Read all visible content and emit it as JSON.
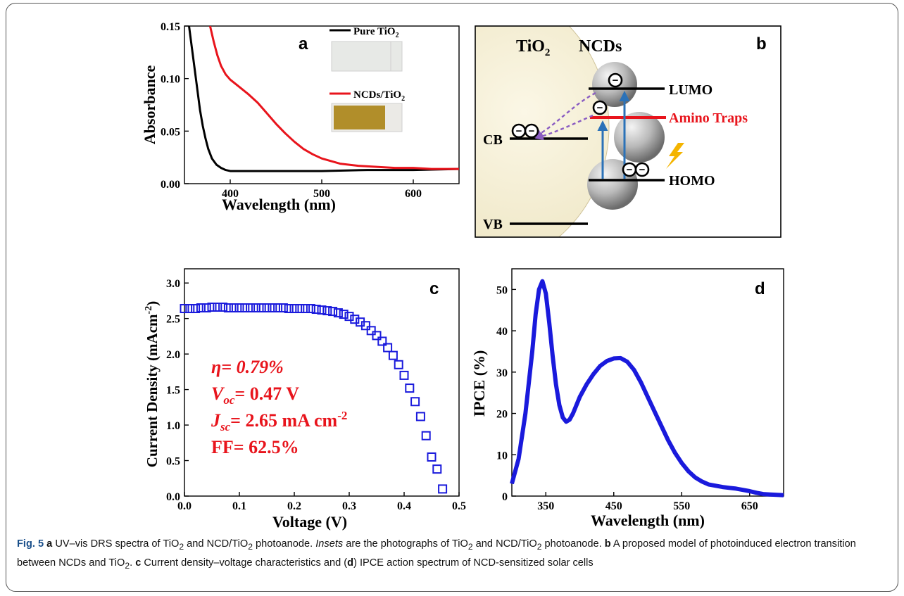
{
  "panels": {
    "a": {
      "letter": "a",
      "legend": [
        {
          "name": "Pure TiO",
          "sub": "2",
          "color": "#000000"
        },
        {
          "name": "NCDs/TiO",
          "sub": "2",
          "color": "#e8141c"
        }
      ]
    },
    "b": {
      "letter": "b",
      "tio2": "TiO",
      "tio2_sub": "2",
      "ncds": "NCDs",
      "lumo": "LUMO",
      "homo": "HOMO",
      "cb": "CB",
      "vb": "VB",
      "traps": "Amino Traps",
      "electron": "−"
    },
    "c": {
      "letter": "c",
      "eta": "η= 0.79%",
      "voc_sym": "V",
      "voc_sub": "oc",
      "voc_val": "= 0.47 V",
      "jsc_sym": "J",
      "jsc_sub": "sc",
      "jsc_val": "= 2.65 mA cm",
      "jsc_sup": "-2",
      "ff": "FF= 62.5%",
      "text_color": "#e8141c"
    },
    "d": {
      "letter": "d"
    }
  },
  "chart_data": [
    {
      "type": "line",
      "panel": "a",
      "xlabel": "Wavelength (nm)",
      "ylabel": "Absorbance",
      "xlim": [
        350,
        650
      ],
      "ylim": [
        0,
        0.15
      ],
      "xticks": [
        400,
        500,
        600
      ],
      "yticks": [
        0.0,
        0.05,
        0.1,
        0.15
      ],
      "ytick_labels": [
        "0.00",
        "0.05",
        "0.10",
        "0.15"
      ],
      "series": [
        {
          "name": "Pure TiO2",
          "color": "#000000",
          "x": [
            355,
            358,
            361,
            364,
            367,
            370,
            373,
            376,
            380,
            385,
            390,
            395,
            400,
            420,
            450,
            500,
            550,
            600,
            650
          ],
          "y": [
            0.15,
            0.13,
            0.11,
            0.09,
            0.07,
            0.055,
            0.043,
            0.033,
            0.024,
            0.018,
            0.015,
            0.013,
            0.012,
            0.012,
            0.012,
            0.012,
            0.013,
            0.013,
            0.014
          ]
        },
        {
          "name": "NCDs/TiO2",
          "color": "#e8141c",
          "x": [
            378,
            382,
            386,
            390,
            395,
            400,
            410,
            420,
            430,
            440,
            450,
            460,
            470,
            480,
            490,
            500,
            520,
            540,
            560,
            580,
            600,
            620,
            650
          ],
          "y": [
            0.15,
            0.135,
            0.122,
            0.112,
            0.104,
            0.099,
            0.092,
            0.085,
            0.077,
            0.067,
            0.057,
            0.048,
            0.04,
            0.033,
            0.028,
            0.024,
            0.019,
            0.017,
            0.016,
            0.015,
            0.015,
            0.014,
            0.014
          ]
        }
      ]
    },
    {
      "type": "scatter",
      "panel": "c",
      "xlabel": "Voltage (V)",
      "ylabel": "Current Density (mAcm",
      "ylabel_sup": "-2",
      "ylabel_end": ")",
      "xlim": [
        0,
        0.5
      ],
      "ylim": [
        0,
        3.2
      ],
      "xticks": [
        0.0,
        0.1,
        0.2,
        0.3,
        0.4,
        0.5
      ],
      "xtick_labels": [
        "0.0",
        "0.1",
        "0.2",
        "0.3",
        "0.4",
        "0.5"
      ],
      "yticks": [
        0.0,
        0.5,
        1.0,
        1.5,
        2.0,
        2.5,
        3.0
      ],
      "ytick_labels": [
        "0.0",
        "0.5",
        "1.0",
        "1.5",
        "2.0",
        "2.5",
        "3.0"
      ],
      "series": [
        {
          "name": "J-V",
          "color": "#1a1adc",
          "x": [
            0.0,
            0.01,
            0.02,
            0.03,
            0.04,
            0.05,
            0.06,
            0.07,
            0.08,
            0.09,
            0.1,
            0.11,
            0.12,
            0.13,
            0.14,
            0.15,
            0.16,
            0.17,
            0.18,
            0.19,
            0.2,
            0.21,
            0.22,
            0.23,
            0.24,
            0.25,
            0.26,
            0.27,
            0.28,
            0.29,
            0.3,
            0.31,
            0.32,
            0.33,
            0.34,
            0.35,
            0.36,
            0.37,
            0.38,
            0.39,
            0.4,
            0.41,
            0.42,
            0.43,
            0.44,
            0.45,
            0.46,
            0.47
          ],
          "y": [
            2.64,
            2.64,
            2.64,
            2.65,
            2.65,
            2.66,
            2.66,
            2.66,
            2.65,
            2.65,
            2.65,
            2.65,
            2.65,
            2.65,
            2.65,
            2.65,
            2.65,
            2.65,
            2.65,
            2.64,
            2.64,
            2.64,
            2.64,
            2.64,
            2.63,
            2.62,
            2.61,
            2.6,
            2.58,
            2.56,
            2.53,
            2.49,
            2.45,
            2.4,
            2.33,
            2.26,
            2.18,
            2.09,
            1.98,
            1.85,
            1.7,
            1.52,
            1.33,
            1.12,
            0.85,
            0.55,
            0.38,
            0.1
          ]
        }
      ]
    },
    {
      "type": "line",
      "panel": "d",
      "xlabel": "Wavelength (nm)",
      "ylabel": "IPCE (%)",
      "xlim": [
        300,
        700
      ],
      "ylim": [
        0,
        55
      ],
      "xticks": [
        350,
        450,
        550,
        650
      ],
      "yticks": [
        0,
        10,
        20,
        30,
        40,
        50
      ],
      "series": [
        {
          "name": "IPCE",
          "color": "#1a1adc",
          "x": [
            300,
            310,
            320,
            330,
            335,
            340,
            345,
            350,
            355,
            360,
            365,
            370,
            375,
            380,
            385,
            390,
            400,
            410,
            420,
            430,
            440,
            450,
            460,
            470,
            480,
            490,
            500,
            510,
            520,
            530,
            540,
            550,
            560,
            570,
            580,
            590,
            600,
            610,
            620,
            630,
            640,
            650,
            660,
            670,
            680,
            690,
            700
          ],
          "y": [
            3,
            9,
            20,
            35,
            44,
            50,
            52,
            49,
            42,
            34,
            27,
            22,
            19,
            18,
            18.5,
            20,
            24,
            27,
            29.5,
            31.5,
            32.7,
            33.3,
            33.4,
            32.5,
            30.5,
            27.5,
            24,
            20.5,
            17,
            13.5,
            10.5,
            8,
            6,
            4.5,
            3.5,
            2.8,
            2.5,
            2.2,
            2,
            1.8,
            1.5,
            1.2,
            0.8,
            0.5,
            0.4,
            0.3,
            0.2
          ]
        }
      ]
    }
  ],
  "caption": {
    "fig_no": "Fig. 5",
    "a_letter": "a",
    "a_text_1": " UV–vis DRS spectra of TiO",
    "a_sub_1": "2",
    "a_text_2": " and NCD/TiO",
    "a_sub_2": "2",
    "a_text_3": " photoanode. ",
    "insets_word": "Insets",
    "a_text_4": " are the photographs of TiO",
    "a_sub_3": "2",
    "a_text_5": " and NCD/TiO",
    "a_sub_4": "2",
    "a_text_6": " photoanode. ",
    "b_letter": "b",
    "b_text_1": " A proposed model of photoinduced electron transition between NCDs and TiO",
    "b_sub_1": "2",
    "b_text_2": ". ",
    "c_letter": "c",
    "c_text": " Current density–voltage characteristics and (",
    "d_letter": "d",
    "d_text": ") IPCE action spectrum of NCD-sensitized solar cells"
  }
}
